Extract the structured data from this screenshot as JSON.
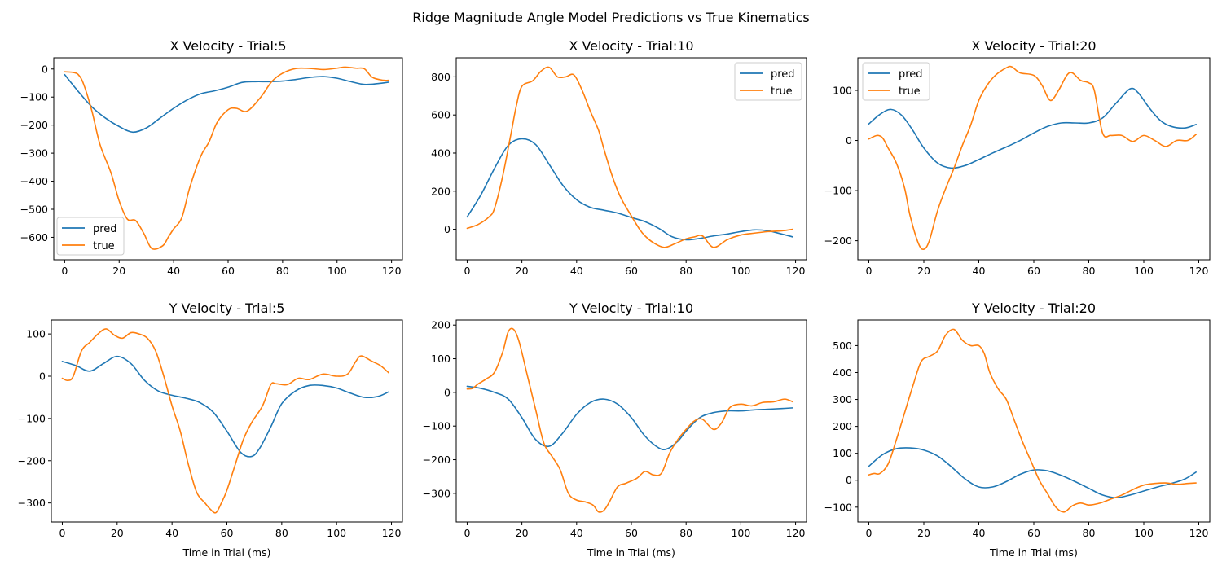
{
  "suptitle": "Ridge Magnitude Angle Model Predictions vs True Kinematics",
  "colors": {
    "pred": "#1f77b4",
    "true": "#ff7f0e"
  },
  "chart_data": [
    {
      "type": "line",
      "title": "X Velocity - Trial:5",
      "xlabel": "",
      "xlim": [
        -4,
        124
      ],
      "ylim": [
        -680,
        40
      ],
      "xticks": [
        0,
        20,
        40,
        60,
        80,
        100,
        120
      ],
      "yticks": [
        -600,
        -500,
        -400,
        -300,
        -200,
        -100,
        0
      ],
      "legend": "lower-left",
      "series": [
        {
          "name": "pred",
          "x": [
            0,
            5,
            10,
            15,
            20,
            25,
            30,
            35,
            40,
            45,
            50,
            55,
            60,
            65,
            70,
            75,
            80,
            85,
            90,
            95,
            100,
            105,
            110,
            115,
            119
          ],
          "y": [
            -20,
            -80,
            -135,
            -175,
            -205,
            -225,
            -210,
            -175,
            -140,
            -110,
            -88,
            -78,
            -65,
            -48,
            -45,
            -45,
            -43,
            -37,
            -30,
            -27,
            -33,
            -45,
            -55,
            -52,
            -47
          ]
        },
        {
          "name": "true",
          "x": [
            0,
            3,
            5,
            7,
            10,
            13,
            17,
            20,
            23,
            26,
            29,
            32,
            36,
            38,
            40,
            43,
            46,
            50,
            53,
            56,
            60,
            63,
            67,
            72,
            76,
            80,
            85,
            90,
            95,
            100,
            103,
            107,
            110,
            113,
            117,
            119
          ],
          "y": [
            -10,
            -12,
            -20,
            -55,
            -150,
            -270,
            -370,
            -470,
            -535,
            -540,
            -585,
            -640,
            -630,
            -600,
            -570,
            -530,
            -420,
            -310,
            -260,
            -190,
            -145,
            -140,
            -150,
            -100,
            -45,
            -15,
            2,
            2,
            -2,
            3,
            7,
            3,
            1,
            -30,
            -40,
            -40
          ]
        }
      ]
    },
    {
      "type": "line",
      "title": "X Velocity - Trial:10",
      "xlabel": "",
      "xlim": [
        -4,
        124
      ],
      "ylim": [
        -160,
        900
      ],
      "xticks": [
        0,
        20,
        40,
        60,
        80,
        100,
        120
      ],
      "yticks": [
        0,
        200,
        400,
        600,
        800
      ],
      "legend": "upper-right",
      "series": [
        {
          "name": "pred",
          "x": [
            0,
            5,
            10,
            15,
            20,
            25,
            30,
            35,
            40,
            45,
            50,
            55,
            60,
            65,
            70,
            75,
            80,
            85,
            90,
            95,
            100,
            105,
            110,
            115,
            119
          ],
          "y": [
            65,
            180,
            320,
            440,
            475,
            445,
            340,
            230,
            155,
            115,
            100,
            85,
            62,
            40,
            5,
            -40,
            -55,
            -48,
            -35,
            -25,
            -12,
            -3,
            -8,
            -25,
            -40
          ]
        },
        {
          "name": "true",
          "x": [
            0,
            4,
            8,
            10,
            13,
            16,
            18,
            20,
            24,
            27,
            30,
            33,
            36,
            39,
            42,
            45,
            48,
            50,
            53,
            56,
            60,
            63,
            65,
            68,
            72,
            76,
            80,
            83,
            86,
            90,
            95,
            100,
            105,
            110,
            115,
            119
          ],
          "y": [
            5,
            25,
            65,
            110,
            280,
            500,
            650,
            750,
            780,
            830,
            850,
            800,
            800,
            810,
            730,
            620,
            520,
            420,
            280,
            170,
            70,
            0,
            -35,
            -70,
            -95,
            -75,
            -50,
            -40,
            -35,
            -95,
            -55,
            -30,
            -20,
            -12,
            -8,
            0
          ]
        }
      ]
    },
    {
      "type": "line",
      "title": "X Velocity - Trial:20",
      "xlabel": "",
      "xlim": [
        -4,
        124
      ],
      "ylim": [
        -238,
        165
      ],
      "xticks": [
        0,
        20,
        40,
        60,
        80,
        100,
        120
      ],
      "yticks": [
        -200,
        -100,
        0,
        100
      ],
      "legend": "upper-left",
      "series": [
        {
          "name": "pred",
          "x": [
            0,
            4,
            8,
            12,
            16,
            20,
            25,
            30,
            35,
            40,
            45,
            50,
            55,
            60,
            65,
            70,
            75,
            80,
            85,
            90,
            95,
            98,
            102,
            106,
            110,
            115,
            119
          ],
          "y": [
            33,
            52,
            62,
            50,
            20,
            -15,
            -45,
            -55,
            -50,
            -38,
            -25,
            -13,
            0,
            15,
            28,
            35,
            35,
            35,
            45,
            75,
            103,
            95,
            65,
            40,
            28,
            25,
            32
          ]
        },
        {
          "name": "true",
          "x": [
            0,
            3,
            5,
            7,
            10,
            13,
            15,
            18,
            20,
            22,
            25,
            28,
            31,
            34,
            37,
            40,
            43,
            46,
            50,
            52,
            55,
            60,
            63,
            66,
            69,
            72,
            74,
            77,
            80,
            82,
            85,
            88,
            92,
            96,
            100,
            104,
            108,
            112,
            116,
            119
          ],
          "y": [
            3,
            10,
            5,
            -15,
            -45,
            -95,
            -150,
            -205,
            -217,
            -200,
            -140,
            -95,
            -55,
            -10,
            30,
            80,
            110,
            130,
            145,
            147,
            135,
            130,
            110,
            80,
            100,
            130,
            135,
            120,
            115,
            100,
            15,
            10,
            10,
            -2,
            10,
            0,
            -12,
            0,
            0,
            12
          ]
        }
      ]
    },
    {
      "type": "line",
      "title": "Y Velocity - Trial:5",
      "xlabel": "Time in Trial (ms)",
      "xlim": [
        -4,
        124
      ],
      "ylim": [
        -345,
        133
      ],
      "xticks": [
        0,
        20,
        40,
        60,
        80,
        100,
        120
      ],
      "yticks": [
        -300,
        -200,
        -100,
        0,
        100
      ],
      "legend": "none",
      "series": [
        {
          "name": "pred",
          "x": [
            0,
            5,
            10,
            15,
            20,
            25,
            30,
            35,
            40,
            45,
            50,
            55,
            60,
            65,
            69,
            72,
            76,
            80,
            85,
            90,
            95,
            100,
            105,
            110,
            115,
            119
          ],
          "y": [
            35,
            25,
            12,
            30,
            47,
            30,
            -10,
            -35,
            -45,
            -52,
            -62,
            -85,
            -130,
            -180,
            -190,
            -170,
            -120,
            -65,
            -35,
            -22,
            -22,
            -28,
            -40,
            -50,
            -48,
            -37
          ]
        },
        {
          "name": "true",
          "x": [
            0,
            2,
            4,
            7,
            10,
            13,
            16,
            19,
            22,
            25,
            28,
            31,
            34,
            37,
            40,
            43,
            46,
            49,
            52,
            54,
            56,
            58,
            60,
            63,
            66,
            69,
            73,
            76,
            78,
            82,
            86,
            90,
            95,
            100,
            104,
            107,
            109,
            113,
            116,
            119
          ],
          "y": [
            -5,
            -10,
            0,
            60,
            80,
            100,
            112,
            97,
            90,
            103,
            100,
            90,
            60,
            0,
            -70,
            -130,
            -210,
            -275,
            -300,
            -315,
            -323,
            -300,
            -270,
            -210,
            -150,
            -110,
            -70,
            -20,
            -18,
            -20,
            -5,
            -8,
            5,
            0,
            5,
            35,
            48,
            35,
            25,
            8
          ]
        }
      ]
    },
    {
      "type": "line",
      "title": "Y Velocity - Trial:10",
      "xlabel": "Time in Trial (ms)",
      "xlim": [
        -4,
        124
      ],
      "ylim": [
        -385,
        215
      ],
      "xticks": [
        0,
        20,
        40,
        60,
        80,
        100,
        120
      ],
      "yticks": [
        -300,
        -200,
        -100,
        0,
        100,
        200
      ],
      "legend": "none",
      "series": [
        {
          "name": "pred",
          "x": [
            0,
            5,
            10,
            15,
            20,
            25,
            30,
            35,
            40,
            45,
            50,
            55,
            60,
            65,
            70,
            73,
            77,
            80,
            85,
            90,
            95,
            100,
            105,
            110,
            115,
            119
          ],
          "y": [
            18,
            12,
            0,
            -20,
            -75,
            -140,
            -160,
            -120,
            -65,
            -30,
            -20,
            -35,
            -75,
            -130,
            -165,
            -168,
            -145,
            -115,
            -75,
            -60,
            -55,
            -55,
            -52,
            -50,
            -48,
            -46
          ]
        },
        {
          "name": "true",
          "x": [
            0,
            2,
            4,
            7,
            10,
            13,
            15,
            17,
            19,
            22,
            25,
            28,
            31,
            34,
            37,
            40,
            43,
            46,
            48,
            50,
            52,
            55,
            58,
            62,
            65,
            68,
            71,
            74,
            77,
            80,
            83,
            86,
            90,
            93,
            96,
            100,
            104,
            108,
            112,
            116,
            119
          ],
          "y": [
            10,
            12,
            25,
            40,
            60,
            120,
            180,
            187,
            150,
            50,
            -50,
            -150,
            -190,
            -230,
            -300,
            -320,
            -325,
            -335,
            -355,
            -350,
            -325,
            -280,
            -270,
            -255,
            -235,
            -245,
            -240,
            -180,
            -140,
            -110,
            -85,
            -80,
            -110,
            -90,
            -45,
            -35,
            -40,
            -30,
            -28,
            -20,
            -28
          ]
        }
      ]
    },
    {
      "type": "line",
      "title": "Y Velocity - Trial:20",
      "xlabel": "Time in Trial (ms)",
      "xlim": [
        -4,
        124
      ],
      "ylim": [
        -155,
        595
      ],
      "xticks": [
        0,
        20,
        40,
        60,
        80,
        100,
        120
      ],
      "yticks": [
        -100,
        0,
        100,
        200,
        300,
        400,
        500
      ],
      "legend": "none",
      "series": [
        {
          "name": "pred",
          "x": [
            0,
            5,
            10,
            15,
            20,
            25,
            30,
            35,
            40,
            45,
            50,
            55,
            60,
            65,
            70,
            75,
            80,
            85,
            90,
            95,
            100,
            105,
            110,
            115,
            119
          ],
          "y": [
            52,
            95,
            117,
            120,
            112,
            90,
            50,
            5,
            -25,
            -25,
            -5,
            22,
            38,
            35,
            18,
            -5,
            -30,
            -55,
            -65,
            -55,
            -40,
            -25,
            -12,
            5,
            30
          ]
        },
        {
          "name": "true",
          "x": [
            0,
            2,
            4,
            7,
            10,
            13,
            16,
            19,
            22,
            25,
            28,
            31,
            34,
            37,
            40,
            42,
            44,
            47,
            50,
            53,
            56,
            59,
            62,
            65,
            68,
            71,
            74,
            77,
            80,
            84,
            88,
            92,
            96,
            100,
            104,
            108,
            112,
            116,
            119
          ],
          "y": [
            20,
            25,
            25,
            60,
            150,
            250,
            350,
            440,
            460,
            480,
            540,
            560,
            520,
            500,
            500,
            470,
            400,
            340,
            300,
            220,
            140,
            70,
            0,
            -50,
            -100,
            -118,
            -95,
            -85,
            -92,
            -85,
            -70,
            -55,
            -35,
            -18,
            -12,
            -10,
            -15,
            -12,
            -10
          ]
        }
      ]
    }
  ]
}
